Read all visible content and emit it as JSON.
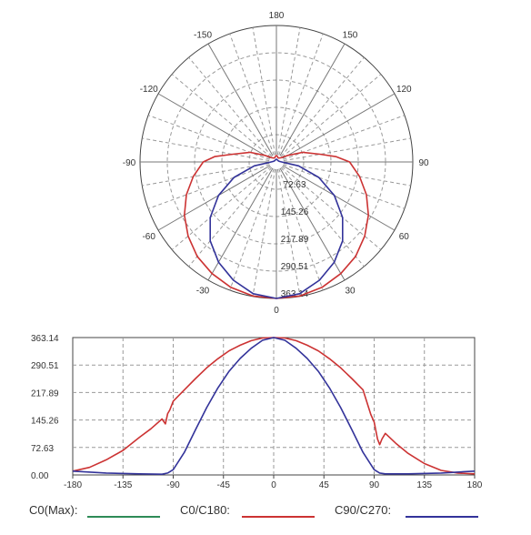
{
  "chart_data": [
    {
      "type": "polar",
      "angle_ticks": [
        {
          "deg": 180,
          "label": "180"
        },
        {
          "deg": 150,
          "label": "150"
        },
        {
          "deg": 120,
          "label": "120"
        },
        {
          "deg": 90,
          "label": "90"
        },
        {
          "deg": 60,
          "label": "60"
        },
        {
          "deg": 30,
          "label": "30"
        },
        {
          "deg": 0,
          "label": "0"
        },
        {
          "deg": -30,
          "label": "-30"
        },
        {
          "deg": -60,
          "label": "-60"
        },
        {
          "deg": -90,
          "label": "-90"
        },
        {
          "deg": -120,
          "label": "-120"
        },
        {
          "deg": -150,
          "label": "-150"
        }
      ],
      "radial_ticks": [
        "72.63",
        "145.26",
        "217.89",
        "290.51",
        "363.14"
      ],
      "rmax": 363.14,
      "grid": true,
      "series": [
        {
          "name": "C0/C180",
          "color": "#cc3333",
          "angles": [
            -180,
            -170,
            -160,
            -150,
            -140,
            -130,
            -120,
            -110,
            -100,
            -95,
            -90,
            -80,
            -70,
            -60,
            -50,
            -40,
            -30,
            -20,
            -10,
            0,
            10,
            20,
            30,
            40,
            50,
            60,
            70,
            80,
            90,
            95,
            100,
            110,
            120,
            130,
            140,
            150,
            160,
            170,
            180
          ],
          "values": [
            18,
            15,
            12,
            12,
            14,
            18,
            35,
            75,
            118,
            165,
            195,
            225,
            255,
            283,
            307,
            328,
            343,
            355,
            362,
            363.14,
            362,
            355,
            343,
            328,
            307,
            283,
            255,
            225,
            195,
            160,
            118,
            75,
            35,
            18,
            14,
            12,
            12,
            15,
            18
          ]
        },
        {
          "name": "C90/C270",
          "color": "#33339a",
          "angles": [
            -180,
            -150,
            -120,
            -100,
            -90,
            -80,
            -70,
            -60,
            -50,
            -40,
            -30,
            -20,
            -10,
            0,
            10,
            20,
            30,
            40,
            50,
            60,
            70,
            80,
            90,
            100,
            120,
            150,
            180
          ],
          "values": [
            8,
            6,
            6,
            8,
            14,
            60,
            120,
            178,
            230,
            274,
            308,
            335,
            356,
            363.14,
            356,
            335,
            308,
            274,
            230,
            178,
            120,
            60,
            14,
            8,
            6,
            6,
            8
          ]
        }
      ]
    },
    {
      "type": "line",
      "xlim": [
        -180,
        180
      ],
      "ylim": [
        0,
        363.14
      ],
      "x_ticks": [
        "-180",
        "-135",
        "-90",
        "-45",
        "0",
        "45",
        "90",
        "135",
        "180"
      ],
      "y_ticks": [
        "0.00",
        "72.63",
        "145.26",
        "217.89",
        "290.51",
        "363.14"
      ],
      "grid": true,
      "series": [
        {
          "name": "C0/C180",
          "color": "#cc3333",
          "x": [
            -180,
            -165,
            -150,
            -135,
            -120,
            -110,
            -100,
            -97,
            -95,
            -93,
            -90,
            -80,
            -70,
            -60,
            -50,
            -40,
            -30,
            -20,
            -10,
            0,
            10,
            20,
            30,
            40,
            50,
            60,
            70,
            80,
            87,
            90,
            93,
            95,
            97,
            100,
            110,
            120,
            135,
            150,
            165,
            180
          ],
          "y": [
            10,
            20,
            40,
            65,
            100,
            122,
            148,
            135,
            162,
            172,
            195,
            225,
            255,
            283,
            307,
            328,
            343,
            355,
            362,
            363.14,
            362,
            355,
            343,
            328,
            307,
            283,
            255,
            225,
            160,
            140,
            95,
            80,
            95,
            110,
            82,
            58,
            30,
            12,
            5,
            3
          ]
        },
        {
          "name": "C90/C270",
          "color": "#33339a",
          "x": [
            -180,
            -150,
            -120,
            -100,
            -95,
            -90,
            -80,
            -70,
            -60,
            -50,
            -40,
            -30,
            -20,
            -10,
            0,
            10,
            20,
            30,
            40,
            50,
            60,
            70,
            80,
            90,
            95,
            100,
            120,
            150,
            180
          ],
          "y": [
            10,
            5,
            3,
            2,
            5,
            14,
            60,
            120,
            178,
            230,
            274,
            308,
            335,
            356,
            363.14,
            356,
            335,
            308,
            274,
            230,
            178,
            120,
            60,
            14,
            5,
            3,
            3,
            5,
            10
          ]
        }
      ]
    }
  ],
  "legend": [
    {
      "label": "C0(Max):",
      "color": "#2e8b57"
    },
    {
      "label": "C0/C180:",
      "color": "#cc3333"
    },
    {
      "label": "C90/C270:",
      "color": "#33339a"
    }
  ]
}
